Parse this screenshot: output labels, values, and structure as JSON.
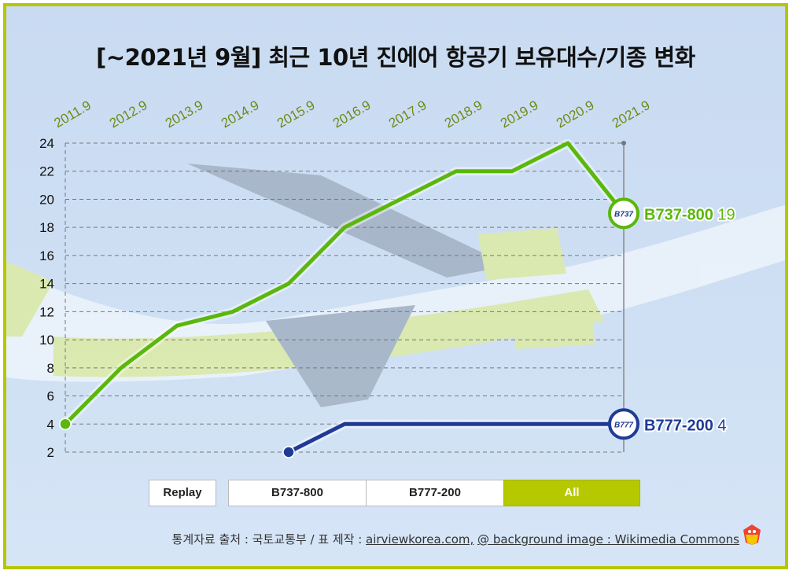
{
  "chart_data": {
    "type": "line",
    "title": "[~2021년 9월] 최근 10년 진에어 항공기 보유대수/기종 변화",
    "categories": [
      "2011.9",
      "2012.9",
      "2013.9",
      "2014.9",
      "2015.9",
      "2016.9",
      "2017.9",
      "2018.9",
      "2019.9",
      "2020.9",
      "2021.9"
    ],
    "ylim": [
      2,
      24
    ],
    "yticks": [
      2,
      4,
      6,
      8,
      10,
      12,
      14,
      16,
      18,
      20,
      22,
      24
    ],
    "grid": true,
    "series": [
      {
        "name": "B737-800",
        "badge": "B737",
        "color": "#5ab70b",
        "values": [
          4,
          8,
          11,
          12,
          14,
          18,
          20,
          22,
          22,
          24,
          19
        ],
        "end_label": "B737-800",
        "end_value": "19"
      },
      {
        "name": "B777-200",
        "badge": "B777",
        "color": "#1f3b95",
        "values": [
          null,
          null,
          null,
          null,
          2,
          4,
          4,
          4,
          4,
          4,
          4
        ],
        "end_label": "B777-200",
        "end_value": "4"
      }
    ]
  },
  "controls": {
    "replay": "Replay",
    "filters": [
      "B737-800",
      "B777-200",
      "All"
    ],
    "active_filter": "All"
  },
  "source": {
    "prefix": "통계자료 출처 : 국토교통부 / 표 제작 : ",
    "link1": "airviewkorea.com,",
    "separator": " ",
    "link2": "@ background image : Wikimedia Commons"
  }
}
